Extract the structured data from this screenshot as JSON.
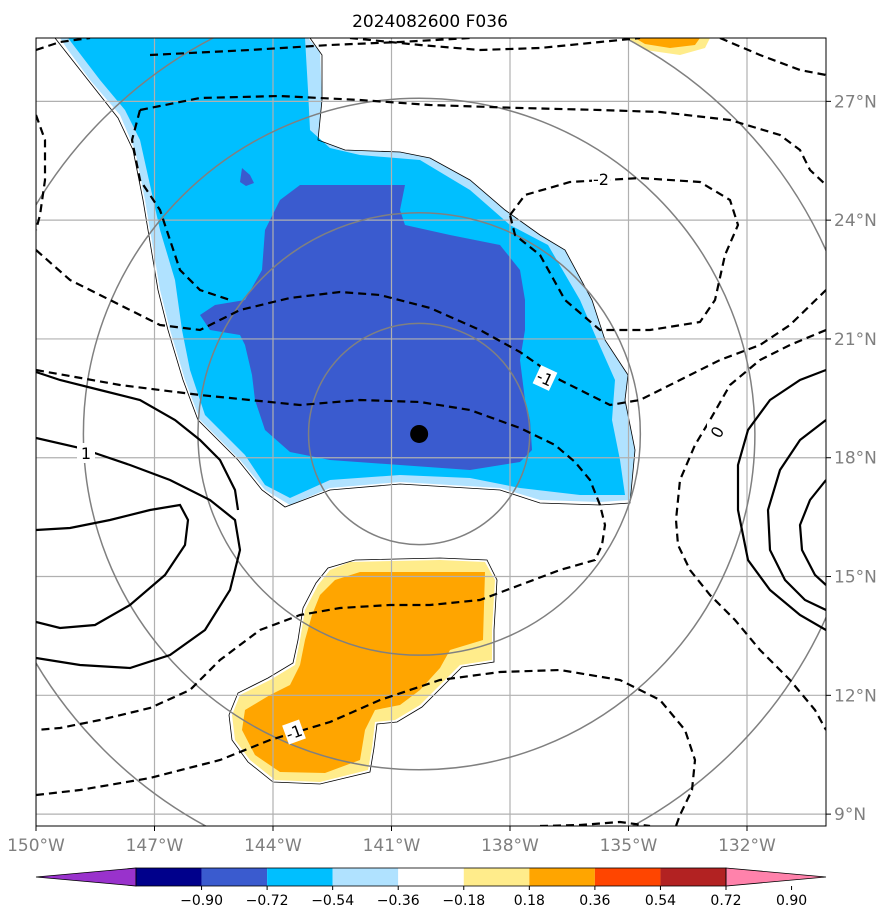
{
  "chart_data": {
    "type": "contour map",
    "title": "2024082600 F036",
    "x_axis": {
      "ticks": [
        {
          "value": -150,
          "label": "150°W"
        },
        {
          "value": -147,
          "label": "147°W"
        },
        {
          "value": -144,
          "label": "144°W"
        },
        {
          "value": -141,
          "label": "141°W"
        },
        {
          "value": -138,
          "label": "138°W"
        },
        {
          "value": -135,
          "label": "135°W"
        },
        {
          "value": -132,
          "label": "132°W"
        }
      ],
      "range": [
        -150,
        -130
      ]
    },
    "y_axis": {
      "ticks": [
        {
          "value": 9,
          "label": "9°N"
        },
        {
          "value": 12,
          "label": "12°N"
        },
        {
          "value": 15,
          "label": "15°N"
        },
        {
          "value": 18,
          "label": "18°N"
        },
        {
          "value": 21,
          "label": "21°N"
        },
        {
          "value": 24,
          "label": "24°N"
        },
        {
          "value": 27,
          "label": "27°N"
        }
      ],
      "range": [
        8.7,
        28.6
      ]
    },
    "grid": true,
    "center_marker": {
      "lon": -140.3,
      "lat": 18.6
    },
    "range_rings_deg": [
      2.8,
      5.6,
      8.5,
      11.3
    ],
    "colorbar": {
      "boundaries": [
        "−0.90",
        "−0.72",
        "−0.54",
        "−0.36",
        "−0.18",
        "0.18",
        "0.36",
        "0.54",
        "0.72",
        "0.90"
      ],
      "colors": [
        "#9932cc",
        "#00008b",
        "#3a5bcf",
        "#00bfff",
        "#b0e2ff",
        "#ffffff",
        "#ffec8b",
        "#ffa500",
        "#ff4500",
        "#b22222",
        "#ff82ab"
      ],
      "extend": "both"
    },
    "contour_labels": [
      "-2",
      "-1",
      "0",
      "1",
      "-1"
    ],
    "filled_regions": [
      {
        "name": "negative anomaly (light blue)",
        "level": -0.18,
        "color": "#b0e2ff"
      },
      {
        "name": "negative anomaly (deep sky blue)",
        "level": -0.36,
        "color": "#00bfff"
      },
      {
        "name": "negative anomaly (royal blue)",
        "level": -0.54,
        "color": "#3a5bcf"
      },
      {
        "name": "positive anomaly (light yellow)",
        "level": 0.18,
        "color": "#ffec8b"
      },
      {
        "name": "positive anomaly (orange)",
        "level": 0.36,
        "color": "#ffa500"
      }
    ]
  }
}
